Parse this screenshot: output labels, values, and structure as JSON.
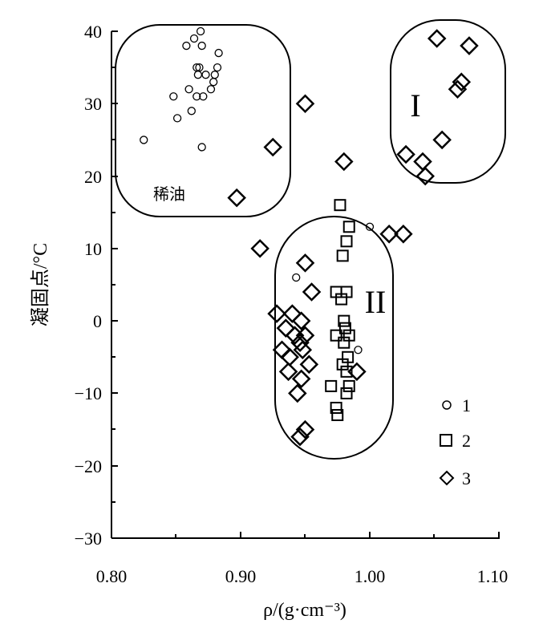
{
  "chart_data": {
    "type": "scatter",
    "xlabel": "ρ/(g·cm⁻³)",
    "ylabel": "凝固点/°C",
    "xlim": [
      0.8,
      1.1
    ],
    "ylim": [
      -30,
      40
    ],
    "x_ticks": [
      "0.80",
      "0.90",
      "1.00",
      "1.10"
    ],
    "y_ticks": [
      "−30",
      "−20",
      "−10",
      "0",
      "10",
      "20",
      "30",
      "40"
    ],
    "grid": false,
    "legend_position": "bottom-right",
    "region_labels": {
      "light_oil": "稀油",
      "region_1": "I",
      "region_2": "II"
    },
    "series": [
      {
        "name": "1",
        "marker": "circle",
        "points": [
          [
            0.825,
            25
          ],
          [
            0.848,
            31
          ],
          [
            0.851,
            28
          ],
          [
            0.858,
            38
          ],
          [
            0.86,
            32
          ],
          [
            0.862,
            29
          ],
          [
            0.864,
            39
          ],
          [
            0.866,
            35
          ],
          [
            0.866,
            31
          ],
          [
            0.867,
            34
          ],
          [
            0.868,
            35
          ],
          [
            0.869,
            40
          ],
          [
            0.87,
            38
          ],
          [
            0.87,
            24
          ],
          [
            0.871,
            31
          ],
          [
            0.873,
            34
          ],
          [
            0.877,
            32
          ],
          [
            0.879,
            33
          ],
          [
            0.88,
            34
          ],
          [
            0.882,
            35
          ],
          [
            0.883,
            37
          ],
          [
            0.943,
            6
          ],
          [
            1.0,
            13
          ],
          [
            0.991,
            -4
          ]
        ]
      },
      {
        "name": "2",
        "marker": "square",
        "points": [
          [
            0.977,
            16
          ],
          [
            0.984,
            13
          ],
          [
            0.982,
            11
          ],
          [
            0.979,
            9
          ],
          [
            0.974,
            4
          ],
          [
            0.982,
            4
          ],
          [
            0.978,
            3
          ],
          [
            0.98,
            0
          ],
          [
            0.981,
            -1
          ],
          [
            0.984,
            -2
          ],
          [
            0.974,
            -2
          ],
          [
            0.98,
            -3
          ],
          [
            0.983,
            -5
          ],
          [
            0.979,
            -6
          ],
          [
            0.982,
            -7
          ],
          [
            0.97,
            -9
          ],
          [
            0.984,
            -9
          ],
          [
            0.982,
            -10
          ],
          [
            0.974,
            -12
          ],
          [
            0.975,
            -13
          ]
        ]
      },
      {
        "name": "3",
        "marker": "diamond",
        "points": [
          [
            1.052,
            39
          ],
          [
            1.077,
            38
          ],
          [
            1.071,
            33
          ],
          [
            1.068,
            32
          ],
          [
            1.056,
            25
          ],
          [
            1.028,
            23
          ],
          [
            1.041,
            22
          ],
          [
            1.043,
            20
          ],
          [
            0.95,
            30
          ],
          [
            0.925,
            24
          ],
          [
            0.98,
            22
          ],
          [
            0.897,
            17
          ],
          [
            1.015,
            12
          ],
          [
            1.026,
            12
          ],
          [
            0.915,
            10
          ],
          [
            0.95,
            8
          ],
          [
            0.955,
            4
          ],
          [
            0.928,
            1
          ],
          [
            0.94,
            1
          ],
          [
            0.947,
            0
          ],
          [
            0.935,
            -1
          ],
          [
            0.942,
            -2
          ],
          [
            0.95,
            -2
          ],
          [
            0.946,
            -3
          ],
          [
            0.932,
            -4
          ],
          [
            0.948,
            -4
          ],
          [
            0.938,
            -5
          ],
          [
            0.953,
            -6
          ],
          [
            0.937,
            -7
          ],
          [
            0.99,
            -7
          ],
          [
            0.947,
            -8
          ],
          [
            0.944,
            -10
          ],
          [
            0.95,
            -15
          ],
          [
            0.946,
            -16
          ]
        ]
      }
    ]
  }
}
